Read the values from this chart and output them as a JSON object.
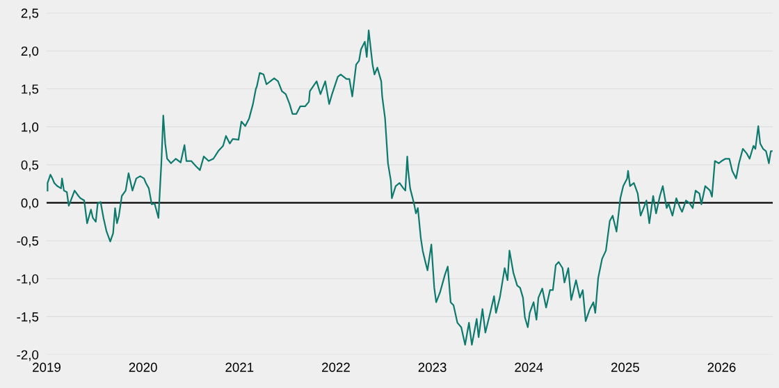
{
  "chart_data": {
    "type": "line",
    "x": [
      2019.01,
      2019.01,
      2019.04,
      2019.06,
      2019.08,
      2019.11,
      2019.15,
      2019.16,
      2019.18,
      2019.21,
      2019.23,
      2019.26,
      2019.29,
      2019.33,
      2019.35,
      2019.39,
      2019.42,
      2019.46,
      2019.48,
      2019.51,
      2019.53,
      2019.56,
      2019.59,
      2019.62,
      2019.66,
      2019.69,
      2019.71,
      2019.73,
      2019.75,
      2019.78,
      2019.82,
      2019.85,
      2019.89,
      2019.93,
      2019.97,
      2020.01,
      2020.03,
      2020.06,
      2020.09,
      2020.12,
      2020.16,
      2020.18,
      2020.19,
      2020.21,
      2020.23,
      2020.25,
      2020.29,
      2020.34,
      2020.39,
      2020.43,
      2020.45,
      2020.5,
      2020.55,
      2020.59,
      2020.63,
      2020.68,
      2020.73,
      2020.78,
      2020.83,
      2020.86,
      2020.9,
      2020.93,
      2020.99,
      2021.02,
      2021.06,
      2021.1,
      2021.14,
      2021.17,
      2021.18,
      2021.21,
      2021.25,
      2021.28,
      2021.32,
      2021.36,
      2021.4,
      2021.44,
      2021.48,
      2021.52,
      2021.55,
      2021.59,
      2021.63,
      2021.68,
      2021.72,
      2021.73,
      2021.8,
      2021.84,
      2021.89,
      2021.93,
      2021.96,
      2022.02,
      2022.05,
      2022.11,
      2022.14,
      2022.17,
      2022.21,
      2022.24,
      2022.26,
      2022.3,
      2022.32,
      2022.34,
      2022.38,
      2022.4,
      2022.43,
      2022.47,
      2022.48,
      2022.51,
      2022.52,
      2022.54,
      2022.57,
      2022.58,
      2022.62,
      2022.66,
      2022.7,
      2022.72,
      2022.74,
      2022.75,
      2022.77,
      2022.81,
      2022.83,
      2022.85,
      2022.88,
      2022.9,
      2022.93,
      2022.95,
      2022.99,
      2023.02,
      2023.04,
      2023.08,
      2023.13,
      2023.16,
      2023.19,
      2023.22,
      2023.26,
      2023.3,
      2023.34,
      2023.38,
      2023.41,
      2023.46,
      2023.48,
      2023.52,
      2023.55,
      2023.6,
      2023.64,
      2023.66,
      2023.7,
      2023.75,
      2023.78,
      2023.8,
      2023.84,
      2023.88,
      2023.91,
      2023.94,
      2023.96,
      2023.99,
      2024.01,
      2024.05,
      2024.08,
      2024.1,
      2024.14,
      2024.18,
      2024.22,
      2024.25,
      2024.28,
      2024.31,
      2024.35,
      2024.37,
      2024.41,
      2024.44,
      2024.49,
      2024.53,
      2024.56,
      2024.59,
      2024.63,
      2024.67,
      2024.69,
      2024.72,
      2024.76,
      2024.8,
      2024.84,
      2024.87,
      2024.91,
      2024.95,
      2024.98,
      2025.02,
      2025.03,
      2025.05,
      2025.09,
      2025.13,
      2025.16,
      2025.2,
      2025.22,
      2025.25,
      2025.29,
      2025.32,
      2025.36,
      2025.39,
      2025.43,
      2025.45,
      2025.49,
      2025.53,
      2025.57,
      2025.59,
      2025.63,
      2025.67,
      2025.7,
      2025.73,
      2025.77,
      2025.79,
      2025.83,
      2025.88,
      2025.9,
      2025.93,
      2025.97,
      2026.0,
      2026.04,
      2026.08,
      2026.11,
      2026.15,
      2026.18,
      2026.22,
      2026.26,
      2026.29,
      2026.33,
      2026.35,
      2026.38,
      2026.4,
      2026.43,
      2026.46,
      2026.49,
      2026.51,
      2026.52
    ],
    "series": [
      {
        "color": "#0e7a6e",
        "values": [
          0.16,
          0.26,
          0.37,
          0.32,
          0.26,
          0.22,
          0.19,
          0.32,
          0.16,
          0.14,
          -0.04,
          0.06,
          0.16,
          0.09,
          0.06,
          0.03,
          -0.27,
          -0.09,
          -0.2,
          -0.25,
          -0.01,
          0.01,
          -0.2,
          -0.37,
          -0.51,
          -0.4,
          -0.07,
          -0.27,
          -0.17,
          0.09,
          0.16,
          0.39,
          0.16,
          0.32,
          0.35,
          0.32,
          0.26,
          0.19,
          -0.02,
          -0.01,
          -0.2,
          0.29,
          0.52,
          1.15,
          0.78,
          0.58,
          0.52,
          0.58,
          0.53,
          0.76,
          0.55,
          0.55,
          0.48,
          0.43,
          0.61,
          0.55,
          0.58,
          0.68,
          0.75,
          0.88,
          0.78,
          0.84,
          0.83,
          1.07,
          1.01,
          1.11,
          1.3,
          1.5,
          1.53,
          1.71,
          1.69,
          1.56,
          1.6,
          1.64,
          1.6,
          1.47,
          1.43,
          1.3,
          1.17,
          1.17,
          1.27,
          1.27,
          1.33,
          1.47,
          1.6,
          1.43,
          1.6,
          1.3,
          1.43,
          1.66,
          1.69,
          1.63,
          1.63,
          1.4,
          1.82,
          1.87,
          2.02,
          2.12,
          1.92,
          2.27,
          1.82,
          1.69,
          1.78,
          1.6,
          1.4,
          1.11,
          0.91,
          0.52,
          0.29,
          0.06,
          0.22,
          0.26,
          0.19,
          0.16,
          0.61,
          0.42,
          0.19,
          -0.01,
          -0.14,
          -0.07,
          -0.46,
          -0.63,
          -0.79,
          -0.89,
          -0.55,
          -1.12,
          -1.31,
          -1.18,
          -0.95,
          -0.84,
          -1.31,
          -1.35,
          -1.58,
          -1.64,
          -1.87,
          -1.58,
          -1.87,
          -1.53,
          -1.77,
          -1.4,
          -1.71,
          -1.45,
          -1.23,
          -1.45,
          -1.25,
          -0.86,
          -1.02,
          -0.63,
          -0.92,
          -1.09,
          -1.12,
          -1.25,
          -1.51,
          -1.64,
          -1.45,
          -1.31,
          -1.54,
          -1.25,
          -1.13,
          -1.38,
          -1.15,
          -1.15,
          -0.82,
          -0.78,
          -0.86,
          -1.05,
          -0.86,
          -1.28,
          -1.02,
          -1.25,
          -1.15,
          -1.56,
          -1.41,
          -1.31,
          -1.45,
          -0.99,
          -0.74,
          -0.63,
          -0.24,
          -0.17,
          -0.38,
          0.06,
          0.22,
          0.32,
          0.42,
          0.22,
          0.26,
          0.12,
          -0.17,
          -0.04,
          0.03,
          -0.27,
          0.09,
          -0.14,
          0.09,
          0.22,
          -0.07,
          -0.01,
          -0.17,
          0.06,
          -0.07,
          -0.12,
          0.03,
          -0.01,
          -0.07,
          0.16,
          0.12,
          -0.02,
          0.22,
          0.16,
          0.08,
          0.55,
          0.52,
          0.55,
          0.58,
          0.58,
          0.42,
          0.32,
          0.52,
          0.71,
          0.65,
          0.58,
          0.75,
          0.71,
          1.01,
          0.78,
          0.71,
          0.68,
          0.52,
          0.68,
          0.68
        ]
      }
    ],
    "xlim": [
      2019,
      2026.53
    ],
    "xticks": [
      2019,
      2020,
      2021,
      2022,
      2023,
      2024,
      2025,
      2026
    ],
    "ylim": [
      -2.0,
      2.5
    ],
    "yticks": [
      {
        "value": -2.0,
        "label": "-2,0"
      },
      {
        "value": -1.5,
        "label": "-1,5"
      },
      {
        "value": -1.0,
        "label": "-1,0"
      },
      {
        "value": -0.5,
        "label": "-0,5"
      },
      {
        "value": 0.0,
        "label": "0,0"
      },
      {
        "value": 0.5,
        "label": "0,5"
      },
      {
        "value": 1.0,
        "label": "1,0"
      },
      {
        "value": 1.5,
        "label": "1,5"
      },
      {
        "value": 2.0,
        "label": "2,0"
      },
      {
        "value": 2.5,
        "label": "2,5"
      }
    ],
    "grid": "y",
    "ref_lines": [
      {
        "axis": "y",
        "value": 0,
        "color": "#000000"
      }
    ],
    "legend": false,
    "marker": "none",
    "line_style": "solid"
  }
}
